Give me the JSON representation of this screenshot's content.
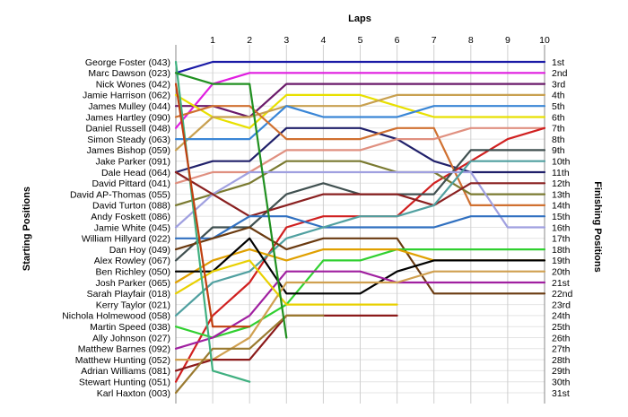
{
  "chart_data": {
    "type": "line",
    "title": "",
    "xlabel": "Laps",
    "ylabel_left": "Starting Positions",
    "ylabel_right": "Finishing Positions",
    "laps": [
      1,
      2,
      3,
      4,
      5,
      6,
      7,
      8,
      9,
      10
    ],
    "xlim": [
      0,
      10
    ],
    "ylim": [
      1,
      31
    ],
    "grid": true,
    "start_labels": [
      "George Foster (043)",
      "Marc Dawson (023)",
      "Nick Wones (042)",
      "Jamie Harrison (062)",
      "James Mulley (044)",
      "James Hartley (090)",
      "Daniel Russell (048)",
      "Simon Steady (063)",
      "James Bishop (059)",
      "Jake Parker (091)",
      "Dale Head (064)",
      "David Pittard (041)",
      "David AP-Thomas (055)",
      "David Turton (088)",
      "Andy Foskett (086)",
      "Jamie White (045)",
      "William Hillyard (022)",
      "Dan Hoy (049)",
      "Alex Rowley (067)",
      "Ben Richley (050)",
      "Josh Parker (065)",
      "Sarah Playfair (018)",
      "Kerry Taylor (021)",
      "Nichola Holmewood (058)",
      "Martin Speed (038)",
      "Ally Johnson (027)",
      "Matthew Barnes (092)",
      "Matthew Hunting (052)",
      "Adrian Williams (081)",
      "Stewart Hunting (051)",
      "Karl Haxton (003)"
    ],
    "finish_labels": [
      "1st",
      "2nd",
      "3rd",
      "4th",
      "5th",
      "6th",
      "7th",
      "8th",
      "9th",
      "10th",
      "11th",
      "12th",
      "13th",
      "14th",
      "15th",
      "16th",
      "17th",
      "18th",
      "19th",
      "20th",
      "21st",
      "22nd",
      "23rd",
      "24th",
      "25th",
      "26th",
      "27th",
      "28th",
      "29th",
      "30th",
      "31st"
    ],
    "series": [
      {
        "color": "#1a1aa6",
        "positions": [
          2,
          1,
          1,
          1,
          1,
          1,
          1,
          1,
          1,
          1,
          1
        ]
      },
      {
        "color": "#e01ee0",
        "positions": [
          7,
          3,
          2,
          2,
          2,
          2,
          2,
          2,
          2,
          2,
          2
        ]
      },
      {
        "color": "#6a1a6a",
        "positions": [
          5,
          5,
          6,
          3,
          3,
          3,
          3,
          3,
          3,
          3,
          3
        ]
      },
      {
        "color": "#e8e000",
        "positions": [
          4,
          6,
          7,
          4,
          4,
          4,
          5,
          6,
          6,
          6,
          6
        ]
      },
      {
        "color": "#c8a050",
        "positions": [
          9,
          6,
          6,
          5,
          5,
          5,
          4,
          4,
          4,
          4,
          4
        ]
      },
      {
        "color": "#3a86d6",
        "positions": [
          8,
          8,
          8,
          5,
          6,
          6,
          6,
          5,
          5,
          5,
          5
        ]
      },
      {
        "color": "#20206a",
        "positions": [
          11,
          10,
          10,
          7,
          7,
          7,
          8,
          10,
          11,
          11,
          11
        ]
      },
      {
        "color": "#d07030",
        "positions": [
          6,
          5,
          5,
          8,
          8,
          8,
          7,
          7,
          14,
          14,
          14
        ]
      },
      {
        "color": "#e09080",
        "positions": [
          12,
          11,
          11,
          9,
          9,
          9,
          8,
          8,
          7,
          7,
          7
        ]
      },
      {
        "color": "#d02020",
        "positions": [
          30,
          24,
          21,
          16,
          15,
          15,
          15,
          12,
          10,
          8,
          7
        ]
      },
      {
        "color": "#7a7a30",
        "positions": [
          14,
          13,
          12,
          10,
          10,
          10,
          11,
          11,
          13,
          13,
          13
        ]
      },
      {
        "color": "#405050",
        "positions": [
          19,
          16,
          16,
          13,
          12,
          13,
          13,
          13,
          9,
          9,
          9
        ]
      },
      {
        "color": "#a0a0e0",
        "positions": [
          16,
          13,
          11,
          11,
          11,
          11,
          11,
          11,
          11,
          16,
          16
        ]
      },
      {
        "color": "#8a2020",
        "positions": [
          11,
          13,
          15,
          14,
          13,
          13,
          13,
          14,
          12,
          12,
          12
        ]
      },
      {
        "color": "#3070c0",
        "positions": [
          17,
          17,
          15,
          15,
          16,
          16,
          16,
          16,
          15,
          15,
          15
        ]
      },
      {
        "color": "#50a0a0",
        "positions": [
          24,
          21,
          20,
          17,
          16,
          15,
          15,
          14,
          10,
          10,
          10
        ]
      },
      {
        "color": "#6a3a10",
        "positions": [
          18,
          17,
          16,
          18,
          17,
          17,
          17,
          22,
          22,
          22,
          22
        ]
      },
      {
        "color": "#30d030",
        "positions": [
          25,
          26,
          25,
          23,
          19,
          19,
          18,
          18,
          18,
          18,
          18
        ]
      },
      {
        "color": "#e0a000",
        "positions": [
          21,
          19,
          18,
          19,
          18,
          18,
          18,
          19,
          19,
          19,
          19
        ]
      },
      {
        "color": "#000000",
        "positions": [
          20,
          20,
          17,
          22,
          22,
          22,
          20,
          19,
          19,
          19,
          19
        ]
      },
      {
        "color": "#a020a0",
        "positions": [
          27,
          26,
          24,
          20,
          20,
          20,
          21,
          21,
          21,
          21,
          21
        ]
      },
      {
        "color": "#d0a050",
        "positions": [
          28,
          28,
          26,
          21,
          21,
          21,
          21,
          20,
          20,
          20,
          20
        ]
      },
      {
        "color": "#e8d000",
        "positions": [
          22,
          20,
          19,
          23,
          23,
          23,
          23
        ]
      },
      {
        "color": "#8b1a1a",
        "positions": [
          29,
          28,
          28,
          24,
          24,
          24,
          24
        ]
      },
      {
        "color": "#9a7a30",
        "positions": [
          31,
          27,
          27,
          24,
          24
        ]
      },
      {
        "color": "#40b080",
        "positions": [
          1,
          29,
          30
        ]
      },
      {
        "color": "#c04010",
        "positions": [
          3,
          25,
          25
        ]
      },
      {
        "color": "#209020",
        "positions": [
          2,
          3,
          3,
          26
        ]
      }
    ]
  }
}
